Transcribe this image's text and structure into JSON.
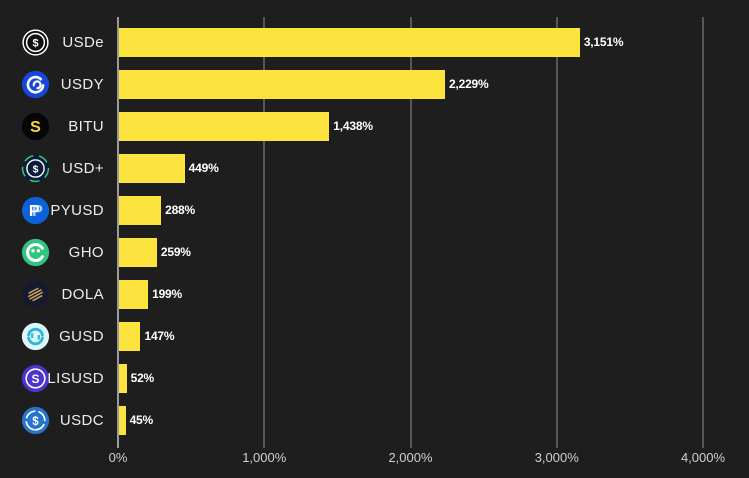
{
  "chart_data": {
    "type": "bar",
    "orientation": "horizontal",
    "title": "",
    "xlabel": "",
    "ylabel": "",
    "xlim": [
      0,
      4000
    ],
    "grid": "vertical-gridlines-on",
    "legend": "none",
    "x_tick_labels": [
      "0%",
      "1,000%",
      "2,000%",
      "3,000%",
      "4,000%"
    ],
    "x_tick_values": [
      0,
      1000,
      2000,
      3000,
      4000
    ],
    "series": [
      {
        "name": "growth-percent",
        "points": [
          {
            "category": "USDe",
            "value": 3151,
            "label": "3,151%",
            "icon": "usde-coin-icon",
            "icon_bg": "#111111"
          },
          {
            "category": "USDY",
            "value": 2229,
            "label": "2,229%",
            "icon": "usdy-coin-icon",
            "icon_bg": "#1747D6"
          },
          {
            "category": "BITU",
            "value": 1438,
            "label": "1,438%",
            "icon": "bitu-coin-icon",
            "icon_bg": "#060606"
          },
          {
            "category": "USD+",
            "value": 449,
            "label": "449%",
            "icon": "usdplus-coin-icon",
            "icon_bg": "#0B1D3A"
          },
          {
            "category": "PYUSD",
            "value": 288,
            "label": "288%",
            "icon": "pyusd-coin-icon",
            "icon_bg": "#0D62D9"
          },
          {
            "category": "GHO",
            "value": 259,
            "label": "259%",
            "icon": "gho-coin-icon",
            "icon_bg": "#2FC57D"
          },
          {
            "category": "DOLA",
            "value": 199,
            "label": "199%",
            "icon": "dola-coin-icon",
            "icon_bg": "#161A2E"
          },
          {
            "category": "GUSD",
            "value": 147,
            "label": "147%",
            "icon": "gusd-coin-icon",
            "icon_bg": "#DFF7FB"
          },
          {
            "category": "LISUSD",
            "value": 52,
            "label": "52%",
            "icon": "lisusd-coin-icon",
            "icon_bg": "#4E33D1"
          },
          {
            "category": "USDC",
            "value": 45,
            "label": "45%",
            "icon": "usdc-coin-icon",
            "icon_bg": "#2775CA"
          }
        ]
      }
    ],
    "colors": {
      "bar": "#FCE33D",
      "background": "#1E1E1E",
      "gridline": "#565656",
      "axis_line": "#9B9B9B",
      "category_label": "#EDEDED",
      "value_label": "#FFFFFF",
      "tick_label": "#CFCFCF"
    }
  }
}
